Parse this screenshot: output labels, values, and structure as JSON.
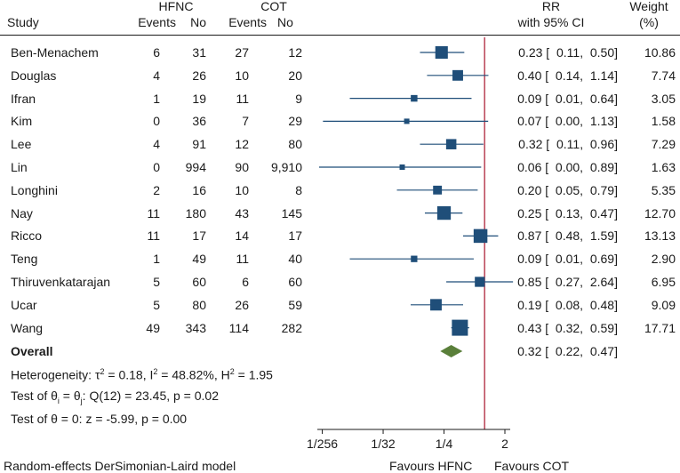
{
  "chart_data": {
    "type": "forest",
    "headers": {
      "study": "Study",
      "group1": "HFNC",
      "group2": "COT",
      "events": "Events",
      "no": "No",
      "rr_line1": "RR",
      "rr_line2": "with 95% CI",
      "weight_line1": "Weight",
      "weight_line2": "(%)"
    },
    "studies": [
      {
        "name": "Ben-Menachem",
        "e1": "6",
        "n1": "31",
        "e2": "27",
        "n2": "12",
        "rr": 0.23,
        "lo": 0.11,
        "hi": 0.5,
        "ci": "0.23 [  0.11,  0.50]",
        "weight": "10.86",
        "w": 10.86
      },
      {
        "name": "Douglas",
        "e1": "4",
        "n1": "26",
        "e2": "10",
        "n2": "20",
        "rr": 0.4,
        "lo": 0.14,
        "hi": 1.14,
        "ci": "0.40 [  0.14,  1.14]",
        "weight": "7.74",
        "w": 7.74
      },
      {
        "name": "Ifran",
        "e1": "1",
        "n1": "19",
        "e2": "11",
        "n2": "9",
        "rr": 0.09,
        "lo": 0.01,
        "hi": 0.64,
        "ci": "0.09 [  0.01,  0.64]",
        "weight": "3.05",
        "w": 3.05
      },
      {
        "name": "Kim",
        "e1": "0",
        "n1": "36",
        "e2": "7",
        "n2": "29",
        "rr": 0.07,
        "lo": 0.004,
        "hi": 1.13,
        "ci": "0.07 [  0.00,  1.13]",
        "weight": "1.58",
        "w": 1.58
      },
      {
        "name": "Lee",
        "e1": "4",
        "n1": "91",
        "e2": "12",
        "n2": "80",
        "rr": 0.32,
        "lo": 0.11,
        "hi": 0.96,
        "ci": "0.32 [  0.11,  0.96]",
        "weight": "7.29",
        "w": 7.29
      },
      {
        "name": "Lin",
        "e1": "0",
        "n1": "994",
        "e2": "90",
        "n2": "9,910",
        "rr": 0.06,
        "lo": 0.0035,
        "hi": 0.89,
        "ci": "0.06 [  0.00,  0.89]",
        "weight": "1.63",
        "w": 1.63
      },
      {
        "name": "Longhini",
        "e1": "2",
        "n1": "16",
        "e2": "10",
        "n2": "8",
        "rr": 0.2,
        "lo": 0.05,
        "hi": 0.79,
        "ci": "0.20 [  0.05,  0.79]",
        "weight": "5.35",
        "w": 5.35
      },
      {
        "name": "Nay",
        "e1": "11",
        "n1": "180",
        "e2": "43",
        "n2": "145",
        "rr": 0.25,
        "lo": 0.13,
        "hi": 0.47,
        "ci": "0.25 [  0.13,  0.47]",
        "weight": "12.70",
        "w": 12.7
      },
      {
        "name": "Ricco",
        "e1": "11",
        "n1": "17",
        "e2": "14",
        "n2": "17",
        "rr": 0.87,
        "lo": 0.48,
        "hi": 1.59,
        "ci": "0.87 [  0.48,  1.59]",
        "weight": "13.13",
        "w": 13.13
      },
      {
        "name": "Teng",
        "e1": "1",
        "n1": "49",
        "e2": "11",
        "n2": "40",
        "rr": 0.09,
        "lo": 0.01,
        "hi": 0.69,
        "ci": "0.09 [  0.01,  0.69]",
        "weight": "2.90",
        "w": 2.9
      },
      {
        "name": "Thiruvenkatarajan",
        "e1": "5",
        "n1": "60",
        "e2": "6",
        "n2": "60",
        "rr": 0.85,
        "lo": 0.27,
        "hi": 2.64,
        "ci": "0.85 [  0.27,  2.64]",
        "weight": "6.95",
        "w": 6.95
      },
      {
        "name": "Ucar",
        "e1": "5",
        "n1": "80",
        "e2": "26",
        "n2": "59",
        "rr": 0.19,
        "lo": 0.08,
        "hi": 0.48,
        "ci": "0.19 [  0.08,  0.48]",
        "weight": "9.09",
        "w": 9.09
      },
      {
        "name": "Wang",
        "e1": "49",
        "n1": "343",
        "e2": "114",
        "n2": "282",
        "rr": 0.43,
        "lo": 0.32,
        "hi": 0.59,
        "ci": "0.43 [  0.32,  0.59]",
        "weight": "17.71",
        "w": 17.71
      }
    ],
    "overall": {
      "label": "Overall",
      "rr": 0.32,
      "lo": 0.22,
      "hi": 0.47,
      "ci": "0.32 [  0.22,  0.47]"
    },
    "heterogeneity": {
      "prefix": "Heterogeneity: τ",
      "tau_sup": "2",
      "tau_val": " = 0.18, I",
      "i_sup": "2",
      "i_val": " = 48.82%, H",
      "h_sup": "2",
      "h_val": " = 1.95"
    },
    "test_equal": {
      "prefix": "Test of θ",
      "sub1": "i",
      "mid": " = θ",
      "sub2": "j",
      "rest": ": Q(12) = 23.45, p = 0.02"
    },
    "test_zero": "Test of θ = 0: z = -5.99, p = 0.00",
    "x_ticks": [
      {
        "label": "1/256",
        "value": 0.00390625
      },
      {
        "label": "1/32",
        "value": 0.03125
      },
      {
        "label": "1/4",
        "value": 0.25
      },
      {
        "label": "2",
        "value": 2
      }
    ],
    "xlim": [
      0.0033,
      2.4
    ],
    "reference_line": 1,
    "favours_left": "Favours HFNC",
    "favours_right": "Favours COT",
    "model": "Random-effects DerSimonian-Laird model",
    "colors": {
      "marker": "#1f4e79",
      "ci": "#1f4e79",
      "diamond": "#5a7f3a",
      "refline": "#b0243a",
      "text": "#1a1a1a"
    }
  }
}
